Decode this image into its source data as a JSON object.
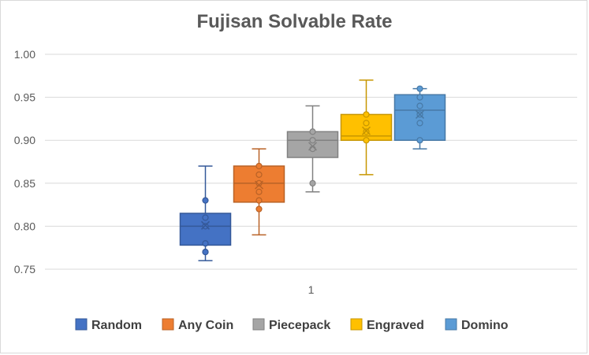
{
  "chart_data": {
    "type": "box",
    "title": "Fujisan Solvable Rate",
    "xlabel": "",
    "ylabel": "",
    "categories": [
      "1"
    ],
    "ylim": [
      0.75,
      1.0
    ],
    "yticks": [
      "0.75",
      "0.80",
      "0.85",
      "0.90",
      "0.95",
      "1.00"
    ],
    "grid": true,
    "legend_position": "bottom",
    "series": [
      {
        "name": "Random",
        "color": "#4472c4",
        "fill": "#4472c4",
        "min": 0.76,
        "q1": 0.778,
        "median": 0.8,
        "q3": 0.815,
        "max": 0.87,
        "mean": 0.801,
        "points": [
          0.83,
          0.81,
          0.8,
          0.78,
          0.77,
          0.77
        ]
      },
      {
        "name": "Any Coin",
        "color": "#ed7d31",
        "fill": "#ed7d31",
        "min": 0.79,
        "q1": 0.828,
        "median": 0.85,
        "q3": 0.87,
        "max": 0.89,
        "mean": 0.848,
        "points": [
          0.87,
          0.86,
          0.85,
          0.84,
          0.83,
          0.82
        ]
      },
      {
        "name": "Piecepack",
        "color": "#a5a5a5",
        "fill": "#a5a5a5",
        "min": 0.84,
        "q1": 0.88,
        "median": 0.9,
        "q3": 0.91,
        "max": 0.94,
        "mean": 0.893,
        "points": [
          0.91,
          0.9,
          0.89,
          0.85
        ]
      },
      {
        "name": "Engraved",
        "color": "#ffc000",
        "fill": "#ffc000",
        "min": 0.86,
        "q1": 0.9,
        "median": 0.905,
        "q3": 0.93,
        "max": 0.97,
        "mean": 0.911,
        "points": [
          0.93,
          0.92,
          0.91,
          0.9
        ]
      },
      {
        "name": "Domino",
        "color": "#5b9bd5",
        "fill": "#5b9bd5",
        "min": 0.89,
        "q1": 0.9,
        "median": 0.935,
        "q3": 0.953,
        "max": 0.96,
        "mean": 0.93,
        "points": [
          0.96,
          0.95,
          0.94,
          0.93,
          0.92,
          0.9
        ]
      }
    ]
  }
}
